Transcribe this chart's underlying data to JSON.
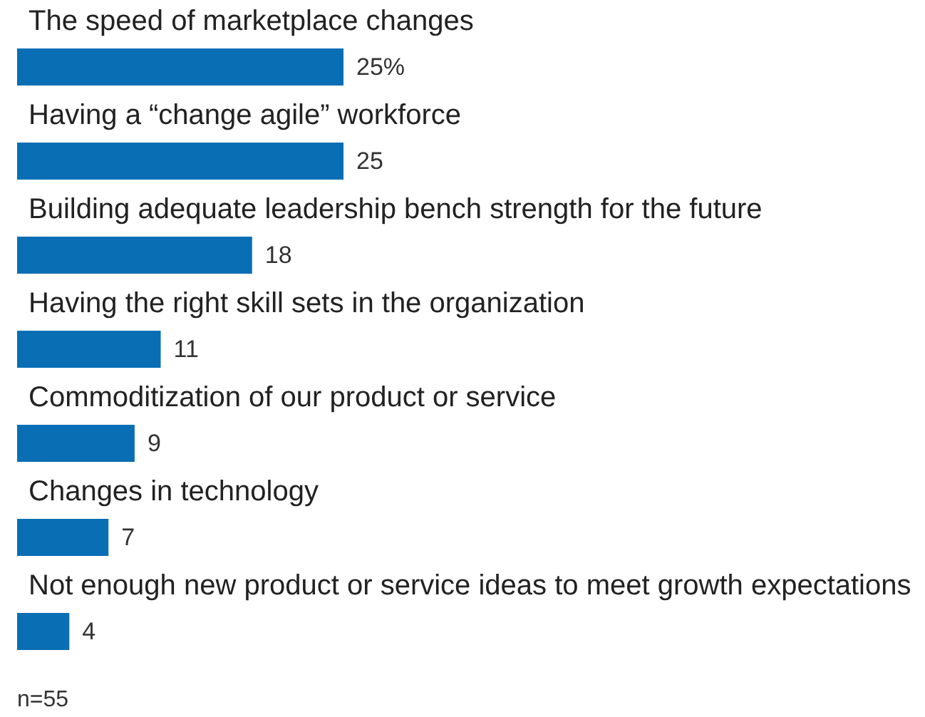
{
  "chart_data": {
    "type": "bar",
    "orientation": "horizontal",
    "categories": [
      "The speed of marketplace changes",
      "Having a “change agile” workforce",
      "Building adequate leadership bench strength for the future",
      "Having the right skill sets in the organization",
      "Commoditization of our product or service",
      "Changes in technology",
      "Not enough new product or service ideas to meet growth expectations"
    ],
    "values": [
      25,
      25,
      18,
      11,
      9,
      7,
      4
    ],
    "value_labels": [
      "25%",
      "25",
      "18",
      "11",
      "9",
      "7",
      "4"
    ],
    "color": "#0a6eb4",
    "annotations": [
      "n=55"
    ]
  }
}
